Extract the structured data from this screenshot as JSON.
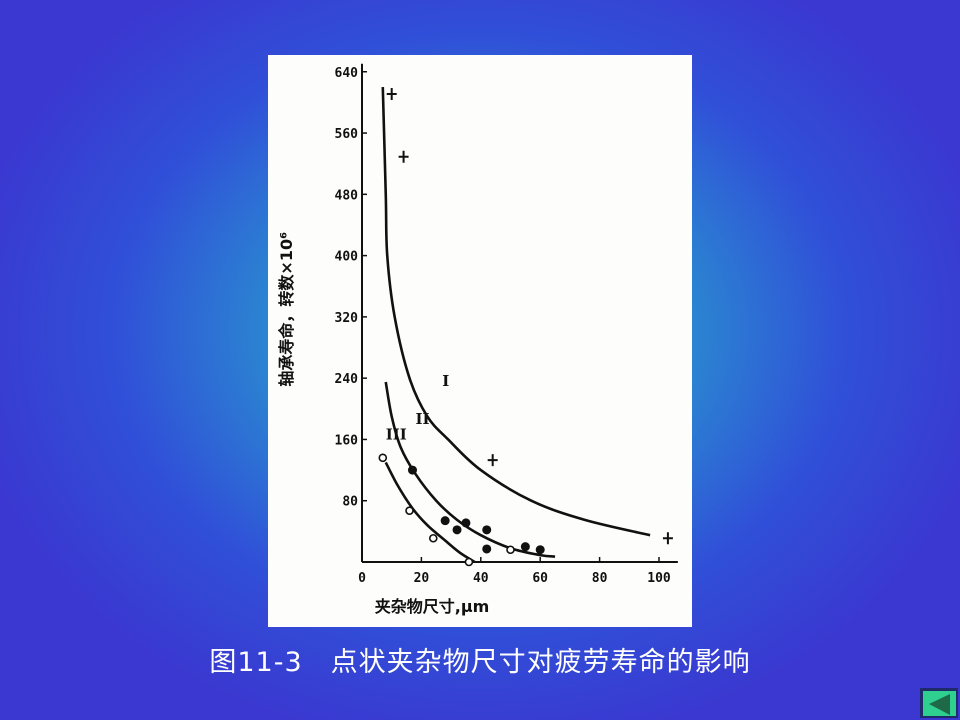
{
  "caption": "图11-3　点状夹杂物尺寸对疲劳寿命的影响",
  "nav": {
    "back_icon": "triangle-left-icon"
  },
  "colors": {
    "background": "#3a38d0",
    "glow": "#2ab0c8",
    "nav_button": "#2fcf8f"
  },
  "chart_data": {
    "type": "scatter",
    "title": "",
    "xlabel": "夹杂物尺寸,μm",
    "ylabel": "轴承寿命，转数×10⁶",
    "xlim": [
      0,
      105
    ],
    "ylim": [
      0,
      640
    ],
    "xticks": [
      0,
      20,
      40,
      60,
      80,
      100
    ],
    "xtick_labels": [
      "0",
      "20",
      "40",
      "60",
      "80",
      "100"
    ],
    "yticks": [
      80,
      160,
      240,
      320,
      400,
      480,
      560,
      640
    ],
    "ytick_labels": [
      "80",
      "160",
      "240",
      "320",
      "400",
      "480",
      "560",
      "640"
    ],
    "grid": false,
    "curves": [
      {
        "label": "I",
        "label_at": [
          27,
          230
        ],
        "points": [
          [
            7,
            620
          ],
          [
            8,
            480
          ],
          [
            8.5,
            400
          ],
          [
            11,
            320
          ],
          [
            16,
            240
          ],
          [
            22,
            190
          ],
          [
            29,
            160
          ],
          [
            40,
            120
          ],
          [
            57,
            80
          ],
          [
            75,
            55
          ],
          [
            97,
            35
          ]
        ]
      },
      {
        "label": "II",
        "label_at": [
          18,
          180
        ],
        "points": [
          [
            8,
            235
          ],
          [
            10,
            190
          ],
          [
            13,
            150
          ],
          [
            18,
            115
          ],
          [
            25,
            80
          ],
          [
            32,
            55
          ],
          [
            40,
            35
          ],
          [
            50,
            18
          ],
          [
            60,
            9
          ],
          [
            65,
            7
          ]
        ]
      },
      {
        "label": "III",
        "label_at": [
          8,
          160
        ],
        "points": [
          [
            8,
            130
          ],
          [
            12,
            100
          ],
          [
            17,
            70
          ],
          [
            22,
            48
          ],
          [
            28,
            28
          ],
          [
            33,
            12
          ],
          [
            38,
            0
          ]
        ]
      }
    ],
    "markers": [
      {
        "shape": "plus",
        "points": [
          [
            10,
            611
          ],
          [
            14,
            529
          ],
          [
            44,
            133
          ],
          [
            103,
            31
          ]
        ]
      },
      {
        "shape": "filled-circle",
        "points": [
          [
            17,
            120
          ],
          [
            28,
            54
          ],
          [
            32,
            42
          ],
          [
            35,
            51
          ],
          [
            42,
            42
          ],
          [
            42,
            17
          ],
          [
            55,
            20
          ],
          [
            60,
            16
          ]
        ]
      },
      {
        "shape": "open-circle",
        "points": [
          [
            7,
            136
          ],
          [
            16,
            67
          ],
          [
            24,
            31
          ],
          [
            36,
            0
          ],
          [
            50,
            16
          ]
        ]
      }
    ]
  }
}
